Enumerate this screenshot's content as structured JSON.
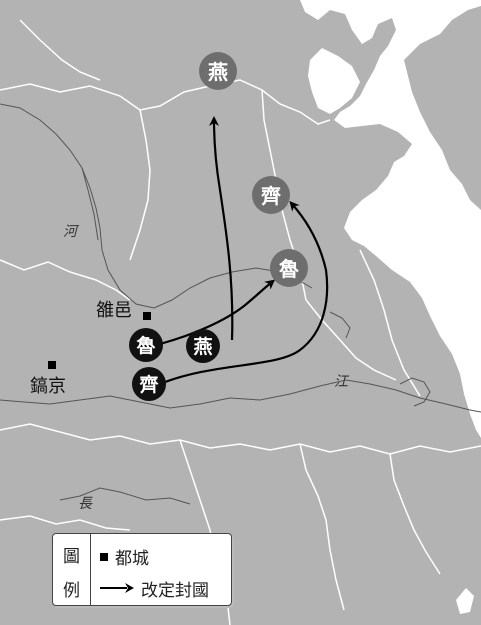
{
  "map": {
    "capitals": [
      {
        "id": "luoyi",
        "label": "雒邑"
      },
      {
        "id": "haojing",
        "label": "鎬京"
      }
    ],
    "rivers": [
      {
        "id": "he",
        "label": "河"
      },
      {
        "id": "jiang",
        "label": "江"
      },
      {
        "id": "chang",
        "label": "長"
      }
    ],
    "states_origin": [
      {
        "id": "lu-origin",
        "label": "魯"
      },
      {
        "id": "yan-origin",
        "label": "燕"
      },
      {
        "id": "qi-origin",
        "label": "齊"
      }
    ],
    "states_destination": [
      {
        "id": "yan-dest",
        "label": "燕"
      },
      {
        "id": "qi-dest",
        "label": "齊"
      },
      {
        "id": "lu-dest",
        "label": "魯"
      }
    ],
    "colors": {
      "land": "#b3b3b3",
      "sea": "#ffffff",
      "border": "#ffffff",
      "origin_marker": "#111111",
      "destination_marker": "#6e6e6e",
      "arrow": "#000000"
    }
  },
  "legend": {
    "heading_top": "圖",
    "heading_bottom": "例",
    "capital_label": "都城",
    "relocation_label": "改定封國",
    "capital_icon": "square-icon",
    "relocation_icon": "arrow-right-icon"
  }
}
